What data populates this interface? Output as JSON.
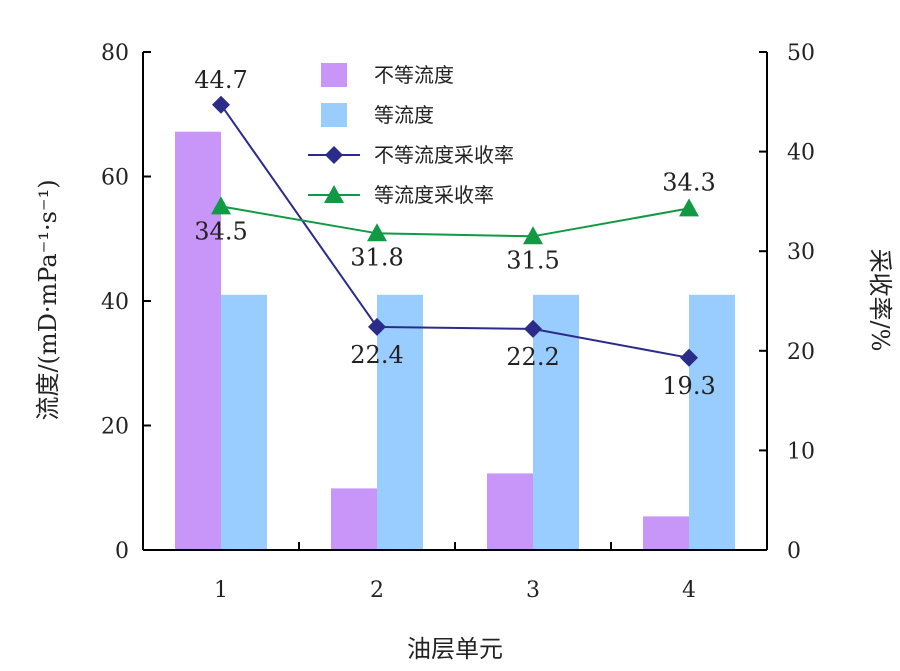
{
  "chart_data": {
    "type": "bar",
    "xlabel": "油层单元",
    "ylabel_left": "流度/(mD·mPa⁻¹·s⁻¹)",
    "ylabel_right": "采收率/%",
    "categories": [
      "1",
      "2",
      "3",
      "4"
    ],
    "y_left": {
      "min": 0,
      "max": 80,
      "ticks": [
        "0",
        "20",
        "40",
        "60",
        "80"
      ]
    },
    "y_right": {
      "min": 0,
      "max": 50,
      "ticks": [
        "0",
        "10",
        "20",
        "30",
        "40",
        "50"
      ]
    },
    "grid": false,
    "legend_position": "top-center",
    "series": [
      {
        "name": "不等流度",
        "kind": "bar",
        "axis": "left",
        "color": "#c896f8",
        "values": [
          67.2,
          9.9,
          12.3,
          5.4
        ]
      },
      {
        "name": "等流度",
        "kind": "bar",
        "axis": "left",
        "color": "#99ccff",
        "values": [
          41,
          41,
          41,
          41
        ]
      },
      {
        "name": "不等流度采收率",
        "kind": "line",
        "marker": "diamond",
        "axis": "right",
        "color": "#2b2b8a",
        "values": [
          44.7,
          22.4,
          22.2,
          19.3
        ],
        "labels": [
          "44.7",
          "22.4",
          "22.2",
          "19.3"
        ]
      },
      {
        "name": "等流度采收率",
        "kind": "line",
        "marker": "triangle",
        "axis": "right",
        "color": "#119944",
        "values": [
          34.5,
          31.8,
          31.5,
          34.3
        ],
        "labels": [
          "34.5",
          "31.8",
          "31.5",
          "34.3"
        ]
      }
    ]
  }
}
